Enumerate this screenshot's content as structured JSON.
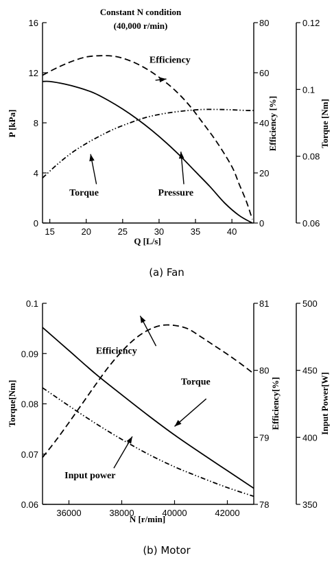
{
  "chart_data": [
    {
      "type": "line",
      "caption": "(a)  Fan",
      "title": [
        "Constant N condition",
        "(40,000  r/min)"
      ],
      "xlabel": "Q  [L/s]",
      "xlim": [
        14,
        43
      ],
      "xticks": [
        15,
        20,
        25,
        30,
        35,
        40
      ],
      "axes": [
        {
          "id": "P",
          "label": "P [kPa]",
          "lim": [
            0,
            16
          ],
          "ticks": [
            0,
            4,
            8,
            12,
            16
          ]
        },
        {
          "id": "E",
          "label": "Efficiency [%]",
          "lim": [
            0,
            80
          ],
          "ticks": [
            0,
            20,
            40,
            60,
            80
          ]
        },
        {
          "id": "T",
          "label": "Torque [Nm]",
          "lim": [
            0.06,
            0.12
          ],
          "ticks": [
            0.06,
            0.08,
            0.1,
            0.12
          ]
        }
      ],
      "series": [
        {
          "name": "Pressure",
          "axis": "P",
          "dash": "solid",
          "x": [
            14,
            15,
            17,
            19,
            21,
            23,
            25,
            27,
            29,
            31,
            33,
            35,
            37,
            39,
            41,
            42.8
          ],
          "y": [
            11.3,
            11.3,
            11.1,
            10.8,
            10.4,
            9.8,
            9.1,
            8.3,
            7.4,
            6.4,
            5.3,
            4.1,
            2.9,
            1.6,
            0.6,
            0
          ]
        },
        {
          "name": "Efficiency",
          "axis": "E",
          "dash": "dashed",
          "x": [
            14,
            16,
            18,
            20,
            22,
            24,
            26,
            28,
            30,
            32,
            34,
            36,
            38,
            40,
            41,
            42,
            42.8
          ],
          "y": [
            59,
            62,
            64.5,
            66.3,
            66.8,
            66.5,
            64.8,
            62,
            58.2,
            53.5,
            47.5,
            40,
            32,
            22.5,
            15.5,
            8.5,
            1.5
          ]
        },
        {
          "name": "Torque",
          "axis": "T",
          "dash": "dashdotdot",
          "x": [
            14,
            16,
            18,
            20,
            22,
            24,
            26,
            28,
            30,
            32,
            34,
            36,
            38,
            40,
            42,
            43
          ],
          "y": [
            0.0735,
            0.0775,
            0.081,
            0.0838,
            0.0862,
            0.0883,
            0.09,
            0.0915,
            0.0925,
            0.0932,
            0.0937,
            0.094,
            0.094,
            0.0939,
            0.0937,
            0.0937
          ]
        }
      ],
      "annotations": [
        {
          "text": "Efficiency",
          "x": 31.5,
          "y": 12.8,
          "axis": "P",
          "tx": 29.5,
          "ty": 11.4,
          "ax": 31,
          "ay": 11.5
        },
        {
          "text": "Torque",
          "x": 19.7,
          "y": 2.2,
          "axis": "P",
          "tx": 21.4,
          "ty": 3.1,
          "ax": 20.6,
          "ay": 5.5
        },
        {
          "text": "Pressure",
          "x": 32.3,
          "y": 2.2,
          "axis": "P",
          "tx": 33.4,
          "ty": 3.1,
          "ax": 33.0,
          "ay": 5.7
        }
      ]
    },
    {
      "type": "line",
      "caption": "(b)  Motor",
      "title": [],
      "xlabel": "N [r/min]",
      "xlim": [
        35000,
        43000
      ],
      "xticks": [
        36000,
        38000,
        40000,
        42000
      ],
      "axes": [
        {
          "id": "T",
          "label": "Torque[Nm]",
          "lim": [
            0.06,
            0.1
          ],
          "ticks": [
            0.06,
            0.07,
            0.08,
            0.09,
            0.1
          ]
        },
        {
          "id": "E",
          "label": "Efficiency[%]",
          "lim": [
            78,
            81
          ],
          "ticks": [
            78,
            79,
            80,
            81
          ]
        },
        {
          "id": "W",
          "label": "Input Power[W]",
          "lim": [
            350,
            500
          ],
          "ticks": [
            350,
            400,
            450,
            500
          ]
        }
      ],
      "series": [
        {
          "name": "Torque",
          "axis": "T",
          "dash": "solid",
          "x": [
            35000,
            36000,
            37000,
            38000,
            39000,
            40000,
            41000,
            42000,
            43000
          ],
          "y": [
            0.0952,
            0.0906,
            0.086,
            0.0818,
            0.0777,
            0.0738,
            0.0702,
            0.0667,
            0.0632
          ]
        },
        {
          "name": "Efficiency",
          "axis": "E",
          "dash": "dashed",
          "x": [
            35000,
            35500,
            36000,
            36500,
            37000,
            37500,
            38000,
            38500,
            39000,
            39500,
            40000,
            40500,
            41000,
            41500,
            42000,
            42500,
            43000
          ],
          "y": [
            78.7,
            78.95,
            79.22,
            79.5,
            79.78,
            80.05,
            80.28,
            80.47,
            80.6,
            80.67,
            80.67,
            80.62,
            80.5,
            80.37,
            80.24,
            80.1,
            79.95
          ]
        },
        {
          "name": "Input power",
          "axis": "W",
          "dash": "dashdotdot",
          "x": [
            35000,
            36000,
            37000,
            38000,
            39000,
            40000,
            41000,
            42000,
            43000
          ],
          "y": [
            437,
            423.5,
            410.5,
            398.5,
            387.5,
            378,
            370,
            362.5,
            356
          ]
        }
      ],
      "annotations": [
        {
          "text": "Efficiency",
          "x": 37800,
          "y": 0.09,
          "axis": "T",
          "tx": 39300,
          "ty": 0.0915,
          "ax": 38700,
          "ay": 0.0975
        },
        {
          "text": "Torque",
          "x": 40800,
          "y": 0.0838,
          "axis": "T",
          "tx": 41200,
          "ty": 0.081,
          "ax": 40000,
          "ay": 0.0755
        },
        {
          "text": "Input power",
          "x": 36800,
          "y": 0.0652,
          "axis": "T",
          "tx": 37700,
          "ty": 0.0672,
          "ax": 38400,
          "ay": 0.0735
        }
      ]
    }
  ]
}
